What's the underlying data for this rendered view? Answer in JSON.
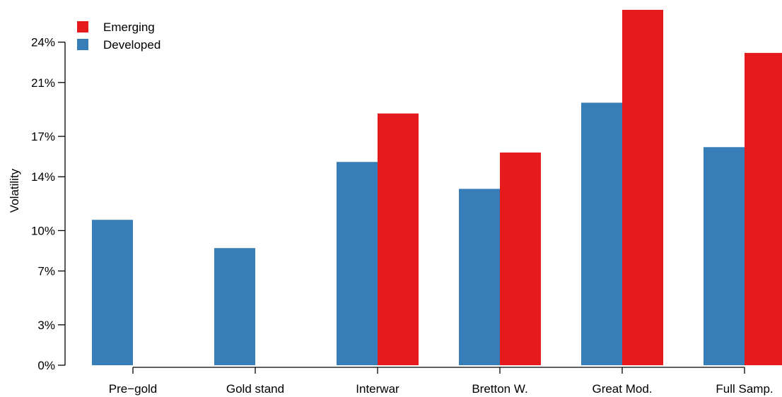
{
  "chart_data": {
    "type": "bar",
    "title": "",
    "xlabel": "",
    "ylabel": "Volatility",
    "ylim": [
      0,
      26.5
    ],
    "y_ticks": [
      0,
      3,
      7,
      10,
      14,
      17,
      21,
      24
    ],
    "y_tick_labels": [
      "0%",
      "3%",
      "7%",
      "10%",
      "14%",
      "17%",
      "21%",
      "24%"
    ],
    "categories": [
      "Pre−gold",
      "Gold stand",
      "Interwar",
      "Bretton W.",
      "Great Mod.",
      "Full Samp."
    ],
    "series": [
      {
        "name": "Developed",
        "color": "#377eb8",
        "values": [
          10.8,
          8.7,
          15.1,
          13.1,
          19.5,
          16.2
        ]
      },
      {
        "name": "Emerging",
        "color": "#e41a1c",
        "values": [
          null,
          null,
          18.7,
          15.8,
          26.4,
          23.2
        ]
      }
    ],
    "legend": {
      "position": "top-left",
      "entries": [
        {
          "label": "Emerging",
          "color": "#e41a1c"
        },
        {
          "label": "Developed",
          "color": "#377eb8"
        }
      ]
    },
    "grid": false
  }
}
